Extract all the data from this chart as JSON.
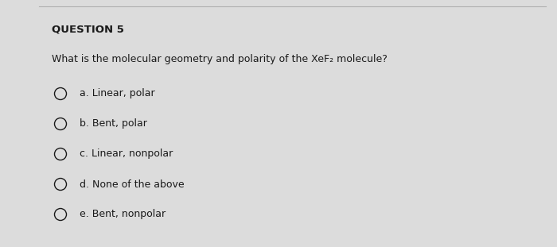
{
  "title": "QUESTION 5",
  "question": "What is the molecular geometry and polarity of the XeF₂ molecule?",
  "options": [
    "a. Linear, polar",
    "b. Bent, polar",
    "c. Linear, nonpolar",
    "d. None of the above",
    "e. Bent, nonpolar"
  ],
  "bg_color": "#dcdcdc",
  "text_color": "#1a1a1a",
  "title_fontsize": 9.5,
  "question_fontsize": 9.0,
  "option_fontsize": 9.0,
  "top_line_color": "#b0b0b0"
}
